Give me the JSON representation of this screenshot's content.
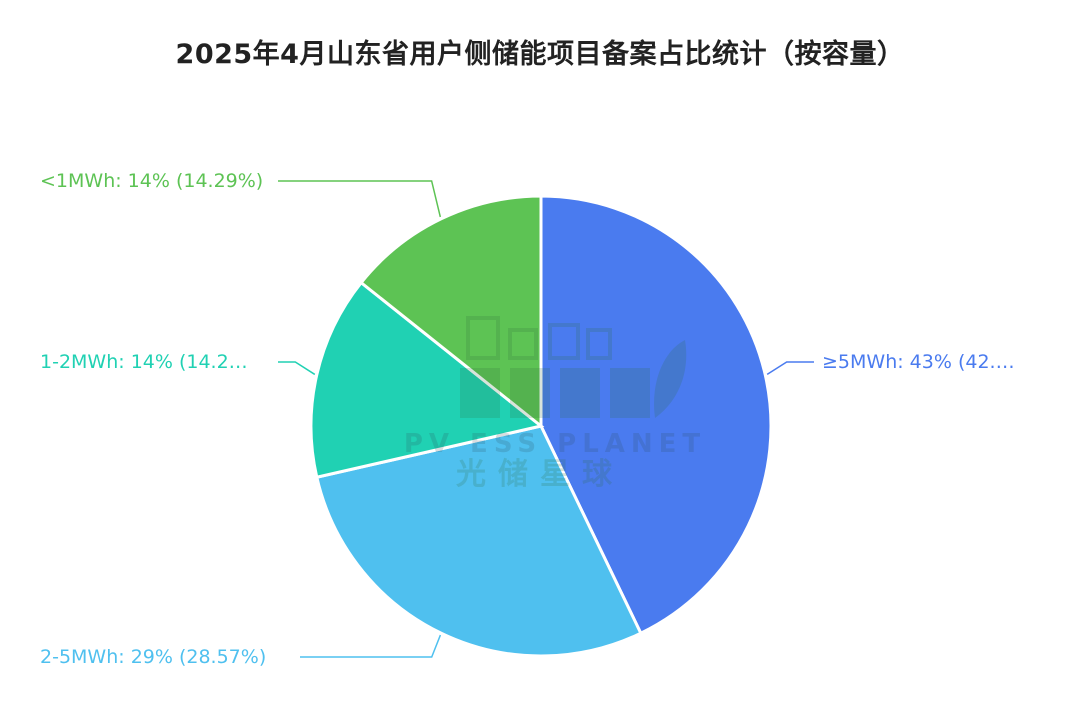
{
  "chart_data": {
    "type": "pie",
    "title": "2025年4月山东省用户侧储能项目备案占比统计（按容量）",
    "slices": [
      {
        "label": "≥5MWh",
        "value": 42.86,
        "label_text": "≥5MWh: 43% (42.…",
        "color": "#4a7bef"
      },
      {
        "label": "2-5MWh",
        "value": 28.57,
        "label_text": "2-5MWh: 29% (28.57%)",
        "color": "#4fc0ef"
      },
      {
        "label": "1-2MWh",
        "value": 14.29,
        "label_text": "1-2MWh: 14% (14.2…",
        "color": "#20d1b3"
      },
      {
        "label": "<1MWh",
        "value": 14.29,
        "label_text": "<1MWh: 14% (14.29%)",
        "color": "#5dc354"
      }
    ],
    "legend": "none",
    "label_color": "#4a7bef"
  },
  "watermark": {
    "line1": "PV ESS PLANET",
    "line2": "光储星球"
  }
}
